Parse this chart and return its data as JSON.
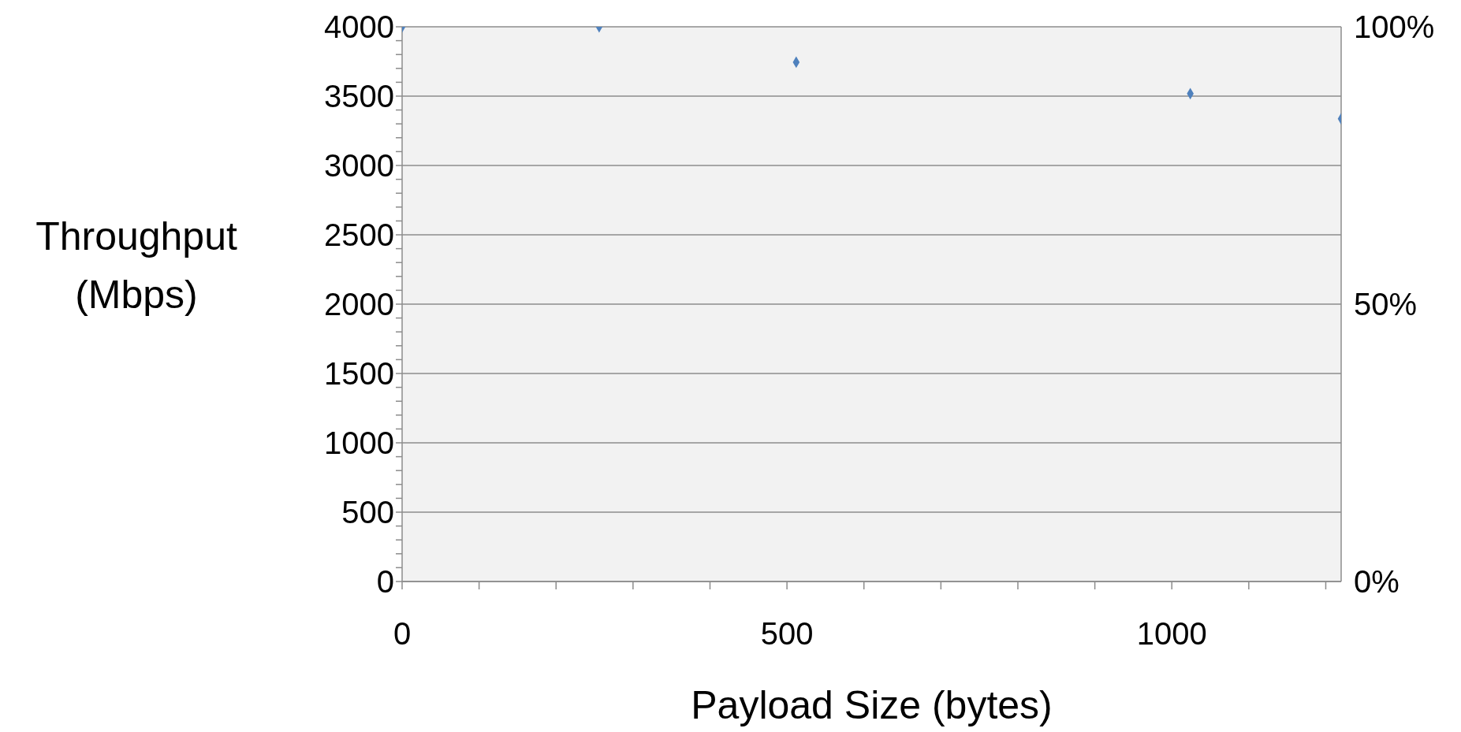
{
  "chart_data": {
    "type": "scatter",
    "xlabel": "Payload Size (bytes)",
    "ylabel": "Throughput (Mbps)",
    "x": [
      0,
      256,
      512,
      1024,
      1220
    ],
    "series": [
      {
        "color": "#4f81bd",
        "values": [
          4000,
          4000,
          3745,
          3518,
          3337
        ]
      }
    ],
    "marker": "diamond",
    "grid": "y",
    "legend": false,
    "xlim": [
      0,
      1220
    ],
    "xticks": [
      0,
      {
        "value": 100,
        "label": null
      },
      {
        "value": 200,
        "label": null
      },
      {
        "value": 300,
        "label": null
      },
      {
        "value": 400,
        "label": null
      },
      500,
      {
        "value": 600,
        "label": null
      },
      {
        "value": 700,
        "label": null
      },
      {
        "value": 800,
        "label": null
      },
      {
        "value": 900,
        "label": null
      },
      1000,
      {
        "value": 1100,
        "label": null
      },
      {
        "value": 1200,
        "label": null
      }
    ],
    "ylim": [
      0,
      4000
    ],
    "yticks": [
      0,
      {
        "value": 100,
        "label": null
      },
      {
        "value": 200,
        "label": null
      },
      {
        "value": 300,
        "label": null
      },
      {
        "value": 400,
        "label": null
      },
      500,
      {
        "value": 600,
        "label": null
      },
      {
        "value": 700,
        "label": null
      },
      {
        "value": 800,
        "label": null
      },
      {
        "value": 900,
        "label": null
      },
      1000,
      {
        "value": 1100,
        "label": null
      },
      {
        "value": 1200,
        "label": null
      },
      {
        "value": 1300,
        "label": null
      },
      {
        "value": 1400,
        "label": null
      },
      1500,
      {
        "value": 1600,
        "label": null
      },
      {
        "value": 1700,
        "label": null
      },
      {
        "value": 1800,
        "label": null
      },
      {
        "value": 1900,
        "label": null
      },
      2000,
      {
        "value": 2100,
        "label": null
      },
      {
        "value": 2200,
        "label": null
      },
      {
        "value": 2300,
        "label": null
      },
      {
        "value": 2400,
        "label": null
      },
      2500,
      {
        "value": 2600,
        "label": null
      },
      {
        "value": 2700,
        "label": null
      },
      {
        "value": 2800,
        "label": null
      },
      {
        "value": 2900,
        "label": null
      },
      3000,
      {
        "value": 3100,
        "label": null
      },
      {
        "value": 3200,
        "label": null
      },
      {
        "value": 3300,
        "label": null
      },
      {
        "value": 3400,
        "label": null
      },
      3500,
      {
        "value": 3600,
        "label": null
      },
      {
        "value": 3700,
        "label": null
      },
      {
        "value": 3800,
        "label": null
      },
      {
        "value": 3900,
        "label": null
      },
      4000
    ],
    "y2lim": [
      0,
      100
    ],
    "y2ticks": [
      {
        "value": 0,
        "label": "0%"
      },
      {
        "value": 50,
        "label": "50%"
      },
      {
        "value": 100,
        "label": "100%"
      }
    ]
  }
}
